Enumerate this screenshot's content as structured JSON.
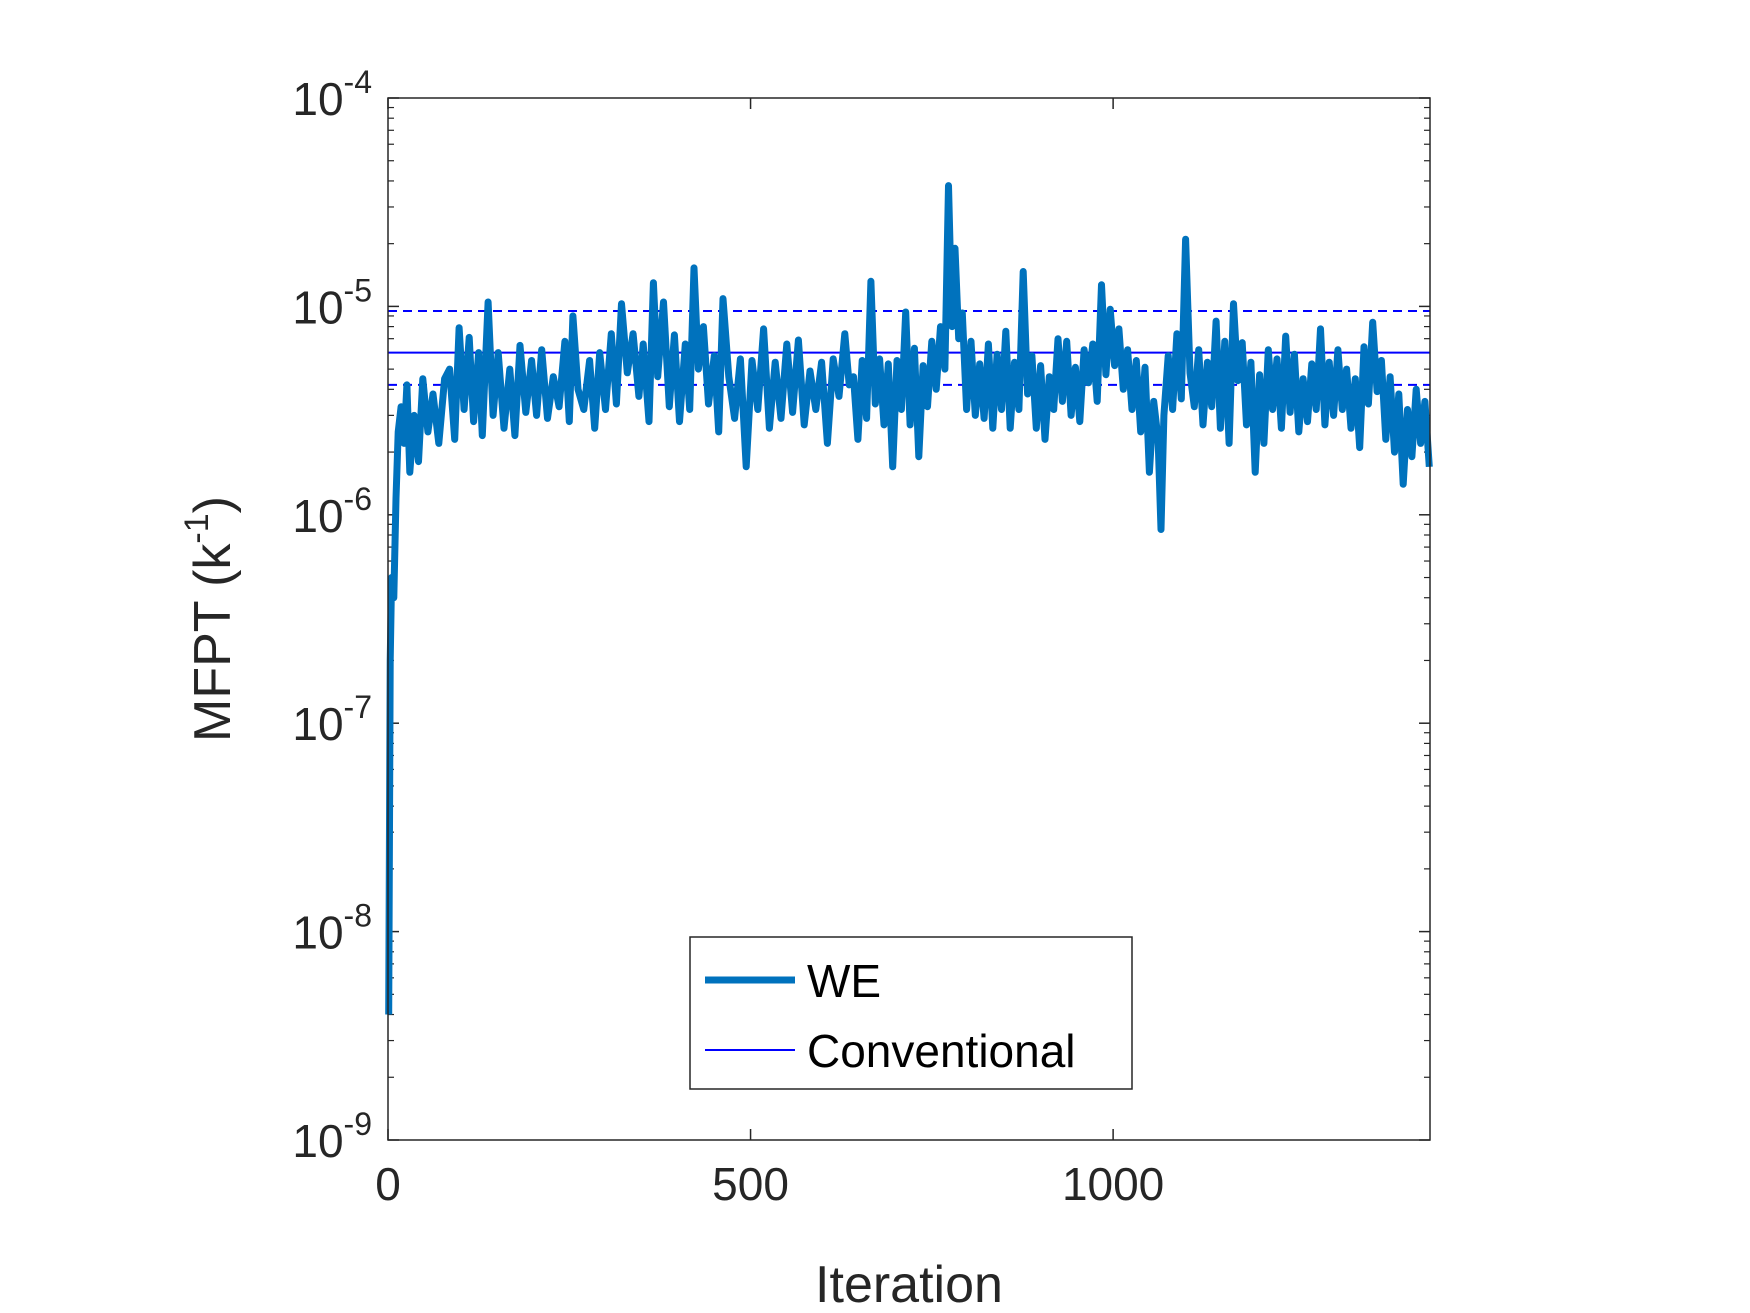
{
  "chart_data": {
    "type": "line",
    "xlabel": "Iteration",
    "ylabel": "MFPT (k",
    "ylabel_sup": "-1",
    "ylabel_close": ")",
    "xlim": [
      0,
      1437
    ],
    "ylim": [
      1e-09,
      0.0001
    ],
    "y_scale": "log",
    "x_ticks": [
      {
        "value": 0,
        "label": "0"
      },
      {
        "value": 500,
        "label": "500"
      },
      {
        "value": 1000,
        "label": "1000"
      }
    ],
    "y_ticks": [
      {
        "value": 1e-09,
        "base": "10",
        "exp": "-9"
      },
      {
        "value": 1e-08,
        "base": "10",
        "exp": "-8"
      },
      {
        "value": 1e-07,
        "base": "10",
        "exp": "-7"
      },
      {
        "value": 1e-06,
        "base": "10",
        "exp": "-6"
      },
      {
        "value": 1e-05,
        "base": "10",
        "exp": "-5"
      },
      {
        "value": 0.0001,
        "base": "10",
        "exp": "-4"
      }
    ],
    "grid": false,
    "legend_position": "bottom-center",
    "series": [
      {
        "name": "WE",
        "color": "#0072BD",
        "style": "thick-solid",
        "points": [
          [
            1,
            4e-09
          ],
          [
            3,
            2e-07
          ],
          [
            5,
            5e-07
          ],
          [
            8,
            4e-07
          ],
          [
            11,
            1.2e-06
          ],
          [
            14,
            2.5e-06
          ],
          [
            18,
            3.3e-06
          ],
          [
            22,
            2.2e-06
          ],
          [
            26,
            4.2e-06
          ],
          [
            30,
            1.6e-06
          ],
          [
            36,
            3e-06
          ],
          [
            42,
            1.8e-06
          ],
          [
            48,
            4.5e-06
          ],
          [
            55,
            2.5e-06
          ],
          [
            62,
            3.8e-06
          ],
          [
            70,
            2.2e-06
          ],
          [
            78,
            4.5e-06
          ],
          [
            85,
            5e-06
          ],
          [
            92,
            2.3e-06
          ],
          [
            98,
            7.9e-06
          ],
          [
            105,
            3.2e-06
          ],
          [
            112,
            7.1e-06
          ],
          [
            118,
            2.8e-06
          ],
          [
            125,
            6e-06
          ],
          [
            130,
            2.4e-06
          ],
          [
            138,
            1.05e-05
          ],
          [
            145,
            3e-06
          ],
          [
            152,
            6e-06
          ],
          [
            160,
            2.6e-06
          ],
          [
            168,
            5e-06
          ],
          [
            175,
            2.4e-06
          ],
          [
            182,
            6.5e-06
          ],
          [
            190,
            3.1e-06
          ],
          [
            198,
            5.5e-06
          ],
          [
            205,
            3e-06
          ],
          [
            212,
            6.2e-06
          ],
          [
            220,
            2.9e-06
          ],
          [
            228,
            4.6e-06
          ],
          [
            236,
            3.3e-06
          ],
          [
            244,
            6.8e-06
          ],
          [
            250,
            2.8e-06
          ],
          [
            255,
            9e-06
          ],
          [
            262,
            4e-06
          ],
          [
            270,
            3.2e-06
          ],
          [
            278,
            5.5e-06
          ],
          [
            285,
            2.6e-06
          ],
          [
            292,
            6e-06
          ],
          [
            300,
            3.2e-06
          ],
          [
            308,
            7.4e-06
          ],
          [
            315,
            3.4e-06
          ],
          [
            322,
            1.03e-05
          ],
          [
            330,
            4.8e-06
          ],
          [
            338,
            7.4e-06
          ],
          [
            346,
            3.7e-06
          ],
          [
            352,
            6.6e-06
          ],
          [
            360,
            2.8e-06
          ],
          [
            366,
            1.3e-05
          ],
          [
            372,
            4.6e-06
          ],
          [
            380,
            1.05e-05
          ],
          [
            388,
            3.3e-06
          ],
          [
            395,
            7.3e-06
          ],
          [
            402,
            2.8e-06
          ],
          [
            410,
            6.6e-06
          ],
          [
            416,
            3.2e-06
          ],
          [
            422,
            1.53e-05
          ],
          [
            428,
            5e-06
          ],
          [
            435,
            8e-06
          ],
          [
            442,
            3.4e-06
          ],
          [
            450,
            5.8e-06
          ],
          [
            456,
            2.5e-06
          ],
          [
            462,
            1.09e-05
          ],
          [
            470,
            4.6e-06
          ],
          [
            478,
            2.9e-06
          ],
          [
            486,
            5.6e-06
          ],
          [
            494,
            1.7e-06
          ],
          [
            502,
            5.5e-06
          ],
          [
            510,
            3.2e-06
          ],
          [
            518,
            7.8e-06
          ],
          [
            526,
            2.6e-06
          ],
          [
            534,
            5.4e-06
          ],
          [
            542,
            2.9e-06
          ],
          [
            550,
            6.6e-06
          ],
          [
            558,
            3.1e-06
          ],
          [
            566,
            6.9e-06
          ],
          [
            574,
            2.7e-06
          ],
          [
            582,
            4.9e-06
          ],
          [
            590,
            3.2e-06
          ],
          [
            598,
            5.4e-06
          ],
          [
            606,
            2.2e-06
          ],
          [
            614,
            5.6e-06
          ],
          [
            622,
            3.7e-06
          ],
          [
            630,
            7.4e-06
          ],
          [
            636,
            4.2e-06
          ],
          [
            642,
            4.6e-06
          ],
          [
            648,
            2.3e-06
          ],
          [
            654,
            5.5e-06
          ],
          [
            660,
            2.9e-06
          ],
          [
            666,
            1.32e-05
          ],
          [
            672,
            3.4e-06
          ],
          [
            678,
            5.6e-06
          ],
          [
            684,
            2.7e-06
          ],
          [
            690,
            5.3e-06
          ],
          [
            696,
            1.7e-06
          ],
          [
            702,
            5.5e-06
          ],
          [
            708,
            3.2e-06
          ],
          [
            714,
            9.4e-06
          ],
          [
            720,
            2.7e-06
          ],
          [
            726,
            6.3e-06
          ],
          [
            732,
            1.9e-06
          ],
          [
            738,
            5.2e-06
          ],
          [
            744,
            3.3e-06
          ],
          [
            750,
            6.8e-06
          ],
          [
            756,
            4e-06
          ],
          [
            762,
            8e-06
          ],
          [
            768,
            5e-06
          ],
          [
            773,
            3.8e-05
          ],
          [
            778,
            8e-06
          ],
          [
            782,
            1.9e-05
          ],
          [
            787,
            7e-06
          ],
          [
            792,
            9.3e-06
          ],
          [
            798,
            3.2e-06
          ],
          [
            804,
            6.8e-06
          ],
          [
            810,
            3e-06
          ],
          [
            816,
            5.3e-06
          ],
          [
            822,
            2.9e-06
          ],
          [
            828,
            6.6e-06
          ],
          [
            834,
            2.6e-06
          ],
          [
            840,
            5.9e-06
          ],
          [
            846,
            3.2e-06
          ],
          [
            852,
            7.6e-06
          ],
          [
            858,
            2.6e-06
          ],
          [
            864,
            5.4e-06
          ],
          [
            870,
            3.2e-06
          ],
          [
            876,
            1.47e-05
          ],
          [
            882,
            3.8e-06
          ],
          [
            888,
            5.8e-06
          ],
          [
            894,
            2.6e-06
          ],
          [
            900,
            5.2e-06
          ],
          [
            906,
            2.3e-06
          ],
          [
            912,
            4.6e-06
          ],
          [
            918,
            3.2e-06
          ],
          [
            924,
            7e-06
          ],
          [
            930,
            3.5e-06
          ],
          [
            936,
            6.8e-06
          ],
          [
            942,
            3e-06
          ],
          [
            948,
            5.1e-06
          ],
          [
            954,
            2.8e-06
          ],
          [
            960,
            6.2e-06
          ],
          [
            966,
            4.3e-06
          ],
          [
            972,
            6.6e-06
          ],
          [
            978,
            3.5e-06
          ],
          [
            984,
            1.27e-05
          ],
          [
            990,
            4.7e-06
          ],
          [
            996,
            9.7e-06
          ],
          [
            1002,
            5.2e-06
          ],
          [
            1008,
            7.8e-06
          ],
          [
            1014,
            4e-06
          ],
          [
            1020,
            6.2e-06
          ],
          [
            1026,
            3.2e-06
          ],
          [
            1032,
            5.5e-06
          ],
          [
            1038,
            2.5e-06
          ],
          [
            1044,
            5.1e-06
          ],
          [
            1050,
            1.6e-06
          ],
          [
            1056,
            3.5e-06
          ],
          [
            1062,
            2.3e-06
          ],
          [
            1066,
            8.5e-07
          ],
          [
            1070,
            3e-06
          ],
          [
            1076,
            5.8e-06
          ],
          [
            1082,
            3.2e-06
          ],
          [
            1088,
            7.4e-06
          ],
          [
            1094,
            3.6e-06
          ],
          [
            1100,
            2.1e-05
          ],
          [
            1106,
            4.8e-06
          ],
          [
            1112,
            3.3e-06
          ],
          [
            1118,
            6.2e-06
          ],
          [
            1124,
            2.7e-06
          ],
          [
            1130,
            5.4e-06
          ],
          [
            1136,
            3.3e-06
          ],
          [
            1142,
            8.5e-06
          ],
          [
            1148,
            2.6e-06
          ],
          [
            1154,
            6.8e-06
          ],
          [
            1160,
            2.2e-06
          ],
          [
            1166,
            1.03e-05
          ],
          [
            1172,
            4.4e-06
          ],
          [
            1178,
            6.7e-06
          ],
          [
            1184,
            2.7e-06
          ],
          [
            1190,
            5.4e-06
          ],
          [
            1196,
            1.6e-06
          ],
          [
            1202,
            4.7e-06
          ],
          [
            1208,
            2.2e-06
          ],
          [
            1214,
            6.2e-06
          ],
          [
            1220,
            3.2e-06
          ],
          [
            1226,
            5.6e-06
          ],
          [
            1232,
            2.6e-06
          ],
          [
            1238,
            7.2e-06
          ],
          [
            1244,
            3.1e-06
          ],
          [
            1250,
            5.9e-06
          ],
          [
            1256,
            2.5e-06
          ],
          [
            1262,
            4.5e-06
          ],
          [
            1268,
            2.8e-06
          ],
          [
            1274,
            5.3e-06
          ],
          [
            1280,
            3.2e-06
          ],
          [
            1286,
            7.8e-06
          ],
          [
            1292,
            2.7e-06
          ],
          [
            1298,
            5.4e-06
          ],
          [
            1304,
            3e-06
          ],
          [
            1310,
            6.2e-06
          ],
          [
            1316,
            3.2e-06
          ],
          [
            1322,
            5e-06
          ],
          [
            1328,
            2.6e-06
          ],
          [
            1334,
            4.5e-06
          ],
          [
            1340,
            2.1e-06
          ],
          [
            1346,
            6.4e-06
          ],
          [
            1352,
            3.4e-06
          ],
          [
            1358,
            8.4e-06
          ],
          [
            1364,
            3.9e-06
          ],
          [
            1370,
            5.5e-06
          ],
          [
            1376,
            2.3e-06
          ],
          [
            1382,
            4.6e-06
          ],
          [
            1388,
            2e-06
          ],
          [
            1394,
            3.8e-06
          ],
          [
            1400,
            1.4e-06
          ],
          [
            1406,
            3.2e-06
          ],
          [
            1412,
            1.9e-06
          ],
          [
            1418,
            4e-06
          ],
          [
            1424,
            2.2e-06
          ],
          [
            1430,
            3.5e-06
          ],
          [
            1436,
            1.7e-06
          ]
        ]
      },
      {
        "name": "Conventional",
        "color": "#0000FF",
        "style": "thin-solid",
        "value": 6e-06,
        "band": [
          4.2e-06,
          9.5e-06
        ]
      }
    ]
  }
}
